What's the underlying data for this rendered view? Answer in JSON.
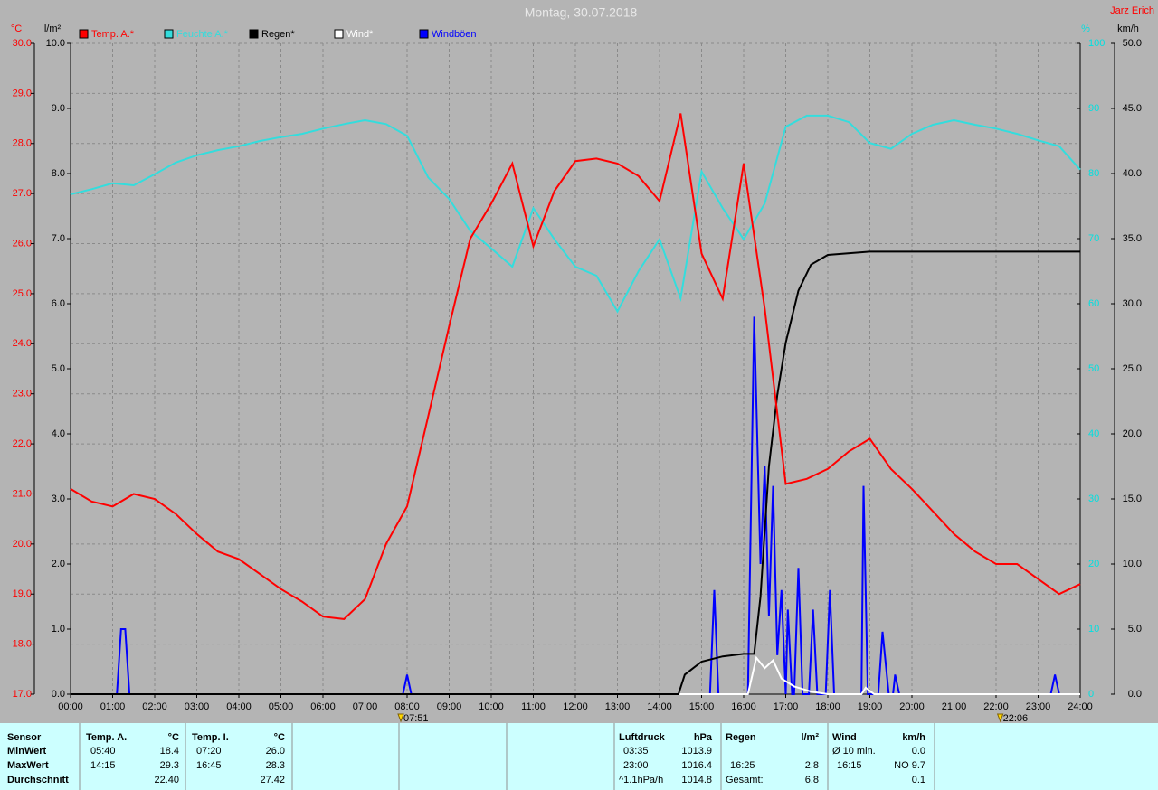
{
  "chart_data": {
    "type": "line",
    "title": "Montag, 30.07.2018",
    "credit": "Jarz Erich",
    "grid": true,
    "xlim": [
      0,
      24
    ],
    "xticks": [
      {
        "value": 0,
        "label": "00:00"
      },
      {
        "value": 1,
        "label": "01:00"
      },
      {
        "value": 2,
        "label": "02:00"
      },
      {
        "value": 3,
        "label": "03:00"
      },
      {
        "value": 4,
        "label": "04:00"
      },
      {
        "value": 5,
        "label": "05:00"
      },
      {
        "value": 6,
        "label": "06:00"
      },
      {
        "value": 7,
        "label": "07:00"
      },
      {
        "value": 8,
        "label": "08:00"
      },
      {
        "value": 9,
        "label": "09:00"
      },
      {
        "value": 10,
        "label": "10:00"
      },
      {
        "value": 11,
        "label": "11:00"
      },
      {
        "value": 12,
        "label": "12:00"
      },
      {
        "value": 13,
        "label": "13:00"
      },
      {
        "value": 14,
        "label": "14:00"
      },
      {
        "value": 15,
        "label": "15:00"
      },
      {
        "value": 16,
        "label": "16:00"
      },
      {
        "value": 17,
        "label": "17:00"
      },
      {
        "value": 18,
        "label": "18:00"
      },
      {
        "value": 19,
        "label": "19:00"
      },
      {
        "value": 20,
        "label": "20:00"
      },
      {
        "value": 21,
        "label": "21:00"
      },
      {
        "value": 22,
        "label": "22:00"
      },
      {
        "value": 23,
        "label": "23:00"
      },
      {
        "value": 24,
        "label": "24:00"
      }
    ],
    "axes": [
      {
        "label": "°C",
        "color": "#ff0000",
        "lim": [
          17,
          30
        ],
        "ticks": [
          {
            "value": 17,
            "label": "17.0"
          },
          {
            "value": 18,
            "label": "18.0"
          },
          {
            "value": 19,
            "label": "19.0"
          },
          {
            "value": 20,
            "label": "20.0"
          },
          {
            "value": 21,
            "label": "21.0"
          },
          {
            "value": 22,
            "label": "22.0"
          },
          {
            "value": 23,
            "label": "23.0"
          },
          {
            "value": 24,
            "label": "24.0"
          },
          {
            "value": 25,
            "label": "25.0"
          },
          {
            "value": 26,
            "label": "26.0"
          },
          {
            "value": 27,
            "label": "27.0"
          },
          {
            "value": 28,
            "label": "28.0"
          },
          {
            "value": 29,
            "label": "29.0"
          },
          {
            "value": 30,
            "label": "30.0"
          }
        ]
      },
      {
        "label": "l/m²",
        "color": "#000000",
        "lim": [
          0,
          10
        ],
        "ticks": [
          {
            "value": 0,
            "label": "0.0"
          },
          {
            "value": 1,
            "label": "1.0"
          },
          {
            "value": 2,
            "label": "2.0"
          },
          {
            "value": 3,
            "label": "3.0"
          },
          {
            "value": 4,
            "label": "4.0"
          },
          {
            "value": 5,
            "label": "5.0"
          },
          {
            "value": 6,
            "label": "6.0"
          },
          {
            "value": 7,
            "label": "7.0"
          },
          {
            "value": 8,
            "label": "8.0"
          },
          {
            "value": 9,
            "label": "9.0"
          },
          {
            "value": 10,
            "label": "10.0"
          }
        ]
      },
      {
        "label": "%",
        "color": "#00e0e0",
        "lim": [
          0,
          100
        ],
        "ticks": [
          0,
          10,
          20,
          30,
          40,
          50,
          60,
          70,
          80,
          90,
          100
        ]
      },
      {
        "label": "km/h",
        "color": "#000000",
        "lim": [
          0,
          50
        ],
        "ticks": [
          {
            "value": 0,
            "label": "0.0"
          },
          {
            "value": 5,
            "label": "5.0"
          },
          {
            "value": 10,
            "label": "10.0"
          },
          {
            "value": 15,
            "label": "15.0"
          },
          {
            "value": 20,
            "label": "20.0"
          },
          {
            "value": 25,
            "label": "25.0"
          },
          {
            "value": 30,
            "label": "30.0"
          },
          {
            "value": 35,
            "label": "35.0"
          },
          {
            "value": 40,
            "label": "40.0"
          },
          {
            "value": 45,
            "label": "45.0"
          },
          {
            "value": 50,
            "label": "50.0"
          }
        ]
      }
    ],
    "series": [
      {
        "name": "Temp. A.*",
        "color": "#ff0000",
        "axis": 0,
        "x": [
          0,
          0.5,
          1,
          1.5,
          2,
          2.5,
          3,
          3.5,
          4,
          4.5,
          5,
          5.5,
          6,
          6.5,
          7,
          7.5,
          8,
          8.5,
          9,
          9.5,
          10,
          10.5,
          11,
          11.5,
          12,
          12.5,
          13,
          13.5,
          14,
          14.5,
          15,
          15.5,
          16,
          16.5,
          17,
          17.5,
          18,
          18.5,
          19,
          19.5,
          20,
          20.5,
          21,
          21.5,
          22,
          22.5,
          23,
          23.5,
          24
        ],
        "values": [
          21.1,
          20.85,
          20.75,
          21.0,
          20.9,
          20.6,
          20.2,
          19.85,
          19.7,
          19.4,
          19.1,
          18.85,
          18.55,
          18.5,
          18.9,
          20.0,
          20.75,
          22.55,
          24.35,
          26.1,
          26.8,
          27.6,
          25.95,
          27.05,
          27.65,
          27.7,
          27.6,
          27.35,
          26.85,
          28.6,
          25.8,
          24.9,
          27.6,
          24.7,
          21.2,
          21.3,
          21.5,
          21.85,
          22.1,
          21.5,
          21.1,
          20.65,
          20.2,
          19.85,
          19.6,
          19.6,
          19.3,
          19.0,
          19.2
        ]
      },
      {
        "name": "Feuchte A.*",
        "color": "#33dddd",
        "axis": 2,
        "x": [
          0,
          0.5,
          1,
          1.5,
          2,
          2.5,
          3,
          3.5,
          4,
          4.5,
          5,
          5.5,
          6,
          6.5,
          7,
          7.5,
          8,
          8.5,
          9,
          9.5,
          10,
          10.5,
          11,
          11.5,
          12,
          12.5,
          13,
          13.5,
          14,
          14.5,
          15,
          15.5,
          16,
          16.5,
          17,
          17.5,
          18,
          18.5,
          19,
          19.5,
          20,
          20.5,
          21,
          21.5,
          22,
          22.5,
          23,
          23.5,
          24
        ],
        "values": [
          76.8,
          77.6,
          78.5,
          78.2,
          79.9,
          81.7,
          82.8,
          83.6,
          84.2,
          85.0,
          85.6,
          86.1,
          86.9,
          87.6,
          88.2,
          87.6,
          85.8,
          79.4,
          76.1,
          71.2,
          68.5,
          65.7,
          74.7,
          69.9,
          65.7,
          64.3,
          58.8,
          65.0,
          69.9,
          60.8,
          80.3,
          74.7,
          69.9,
          75.4,
          87.2,
          88.9,
          88.9,
          87.9,
          84.7,
          83.8,
          86.1,
          87.5,
          88.2,
          87.5,
          86.9,
          86.1,
          85.1,
          84.2,
          80.6
        ]
      },
      {
        "name": "Regen*",
        "color": "#000000",
        "axis": 1,
        "x": [
          0,
          14.45,
          14.6,
          15,
          15.5,
          16,
          16.25,
          16.4,
          16.6,
          16.8,
          17,
          17.3,
          17.6,
          18,
          19,
          24
        ],
        "values": [
          0,
          0,
          0.3,
          0.5,
          0.58,
          0.62,
          0.62,
          1.5,
          3.5,
          4.6,
          5.4,
          6.2,
          6.6,
          6.75,
          6.8,
          6.8
        ]
      },
      {
        "name": "Wind*",
        "color": "#ffffff",
        "axis": 3,
        "x": [
          0,
          16.1,
          16.3,
          16.5,
          16.7,
          16.9,
          17.2,
          17.6,
          18,
          18.8,
          18.9,
          19.1,
          24
        ],
        "values": [
          0,
          0,
          2.8,
          2,
          2.6,
          1.2,
          0.6,
          0.2,
          0,
          0,
          0.5,
          0,
          0
        ]
      },
      {
        "name": "Windböen",
        "color": "#0000ff",
        "axis": 3,
        "x": [
          0,
          1.1,
          1.2,
          1.3,
          1.4,
          7.9,
          8.0,
          8.1,
          15.2,
          15.3,
          15.4,
          16.1,
          16.25,
          16.4,
          16.5,
          16.6,
          16.7,
          16.8,
          16.9,
          17.0,
          17.05,
          17.15,
          17.2,
          17.3,
          17.4,
          17.55,
          17.65,
          17.75,
          17.95,
          18.05,
          18.15,
          18.8,
          18.85,
          18.95,
          19.2,
          19.3,
          19.45,
          19.55,
          19.6,
          19.7,
          23.3,
          23.4,
          23.5,
          24
        ],
        "values": [
          0,
          0,
          5,
          5,
          0,
          0,
          1.5,
          0,
          0,
          8,
          0,
          0,
          29,
          10,
          17.5,
          6,
          16,
          3,
          8,
          0,
          6.5,
          0,
          0,
          9.7,
          0,
          0,
          6.5,
          0,
          0,
          8,
          0,
          0,
          16,
          0,
          0,
          4.8,
          0,
          0,
          1.5,
          0,
          0,
          1.5,
          0,
          0
        ]
      }
    ],
    "annotations": [
      {
        "x": 7.85,
        "label": "07:51"
      },
      {
        "x": 22.1,
        "label": "22:06"
      }
    ]
  },
  "stats": {
    "row_labels": [
      "Sensor",
      "MinWert",
      "MaxWert",
      "Durchschnitt"
    ],
    "groups": [
      {
        "name": "Temp. A.",
        "unit": "°C",
        "rows": [
          {
            "time": "05:40",
            "value": "18.4"
          },
          {
            "time": "14:15",
            "value": "29.3"
          },
          {
            "value": "22.40"
          }
        ]
      },
      {
        "name": "Temp. I.",
        "unit": "°C",
        "rows": [
          {
            "time": "07:20",
            "value": "26.0"
          },
          {
            "time": "16:45",
            "value": "28.3"
          },
          {
            "value": "27.42"
          }
        ]
      },
      {
        "name": "Luftdruck",
        "unit": "hPa",
        "rows": [
          {
            "time": "03:35",
            "value": "1013.9"
          },
          {
            "time": "23:00",
            "value": "1016.4"
          },
          {
            "time": "^1.1hPa/h",
            "value": "1014.8"
          }
        ]
      },
      {
        "name": "Regen",
        "unit": "l/m²",
        "rows": [
          null,
          {
            "time": "16:25",
            "value": "2.8"
          },
          {
            "time": "Gesamt:",
            "value": "6.8"
          }
        ]
      },
      {
        "name": "Wind",
        "unit": "km/h",
        "rows": [
          {
            "time": "Ø 10 min.",
            "value": "0.0"
          },
          {
            "time": "16:15",
            "value": "NO 9.7"
          },
          {
            "value": "0.1"
          }
        ]
      }
    ]
  }
}
